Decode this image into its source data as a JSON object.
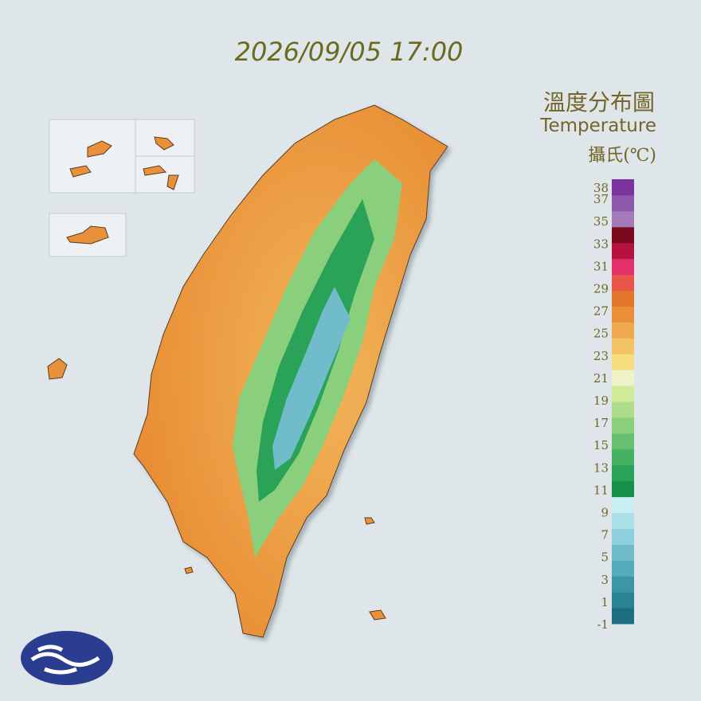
{
  "timestamp": "2026/09/05 17:00",
  "legend": {
    "title": "溫度分布圖",
    "subtitle": "Temperature",
    "unit": "攝氏(℃)",
    "ticks": [
      38,
      37,
      35,
      33,
      31,
      29,
      27,
      25,
      23,
      21,
      19,
      17,
      15,
      13,
      11,
      9,
      7,
      5,
      3,
      1,
      -1
    ],
    "colors": [
      "#1d6f80",
      "#2a8393",
      "#3b97a6",
      "#55aabb",
      "#70bccb",
      "#8ecfdc",
      "#ace0e8",
      "#c8eff2",
      "#14904a",
      "#2aa257",
      "#47b163",
      "#67c070",
      "#8acf7c",
      "#aedd89",
      "#d0ea98",
      "#eef2c6",
      "#f6dd7e",
      "#f3c264",
      "#efa84e",
      "#ea8f38",
      "#e4762c",
      "#e8564a",
      "#e2306a",
      "#b5123f",
      "#7a0a1e",
      "#a47ab8",
      "#8e58ac",
      "#7b33a0"
    ]
  }
}
